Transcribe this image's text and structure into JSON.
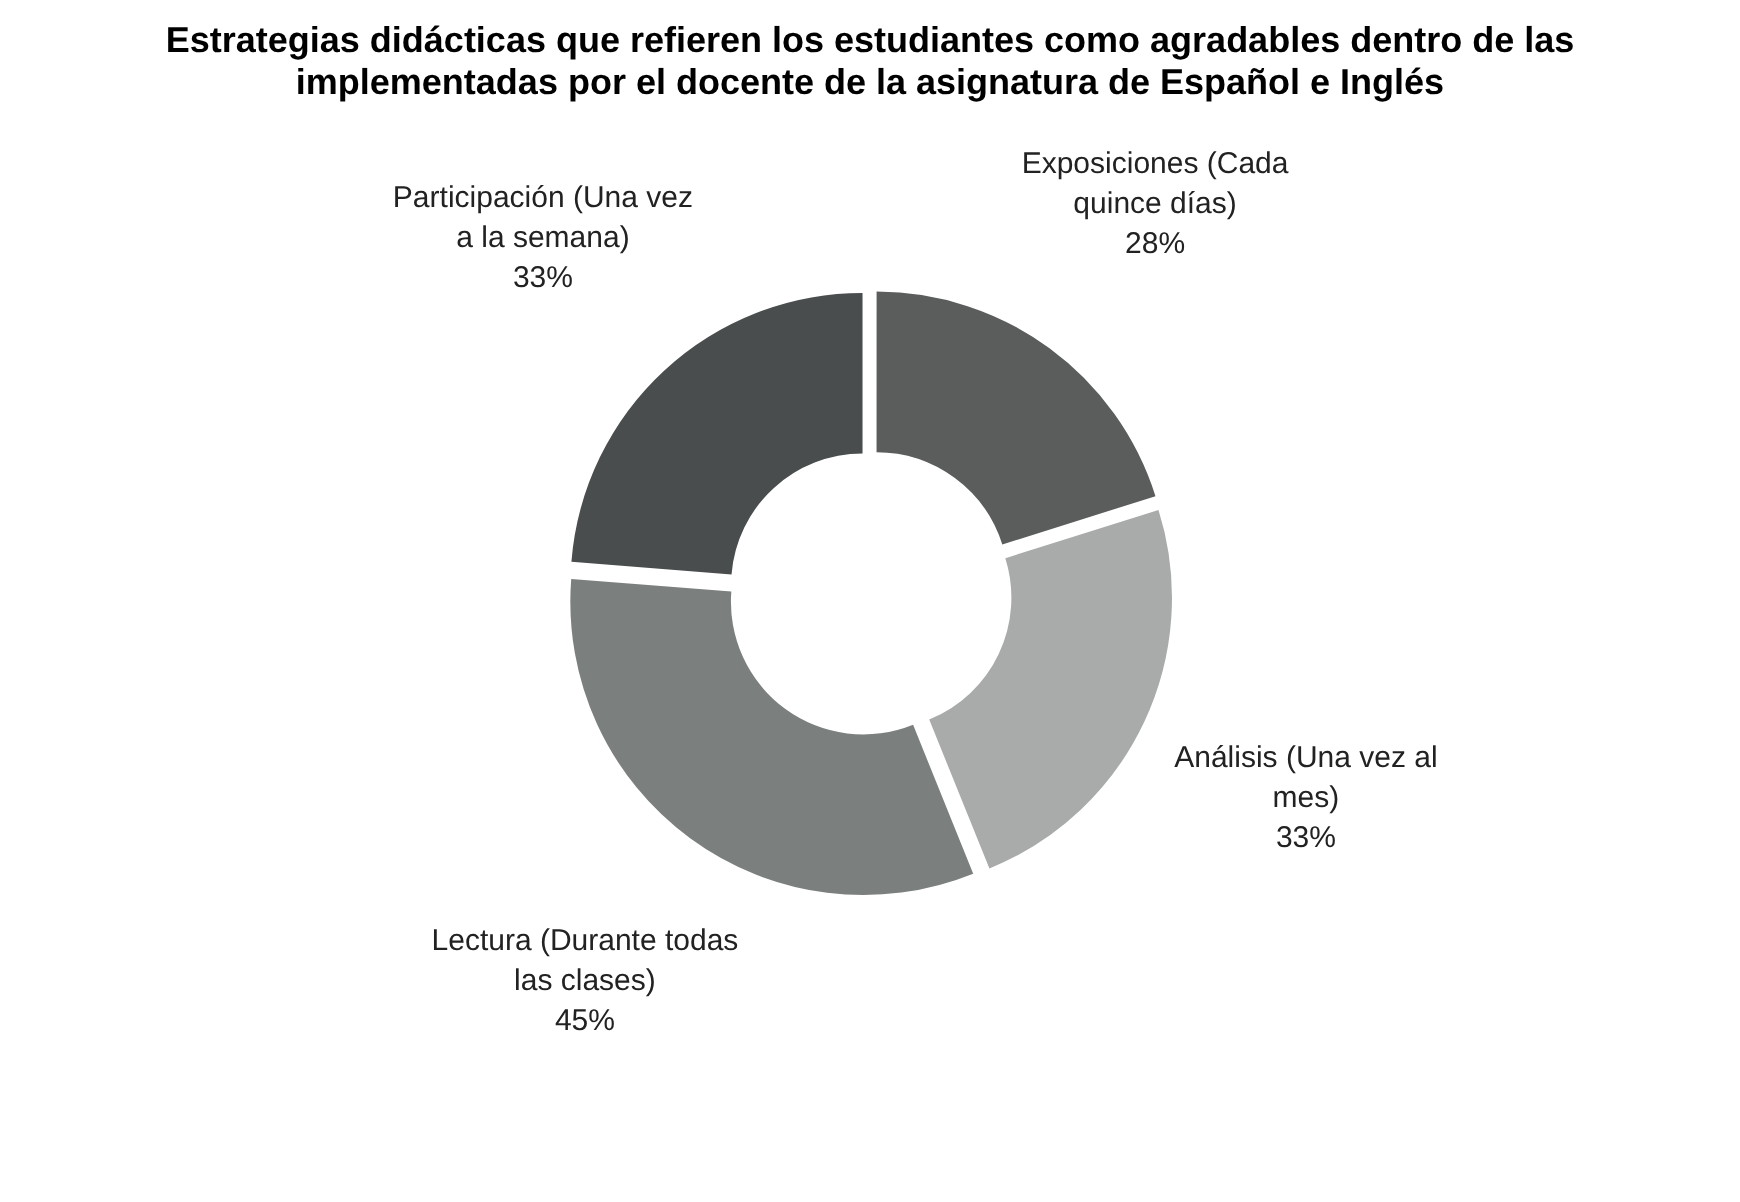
{
  "chart_data": {
    "type": "donut",
    "title": "Estrategias didácticas que refieren los estudiantes como agradables dentro de las implementadas por el docente de la asignatura de Español e Inglés",
    "categories": [
      "Exposiciones (Cada quince días)",
      "Análisis (Una vez al mes)",
      "Lectura (Durante todas las clases)",
      "Participación (Una vez a la semana)"
    ],
    "values": [
      28,
      33,
      45,
      33
    ],
    "value_labels": [
      "28%",
      "33%",
      "45%",
      "33%"
    ],
    "colors": [
      "#5a5d5c",
      "#a9abaa",
      "#7b7f7e",
      "#4a4d4d"
    ],
    "legend": false
  }
}
